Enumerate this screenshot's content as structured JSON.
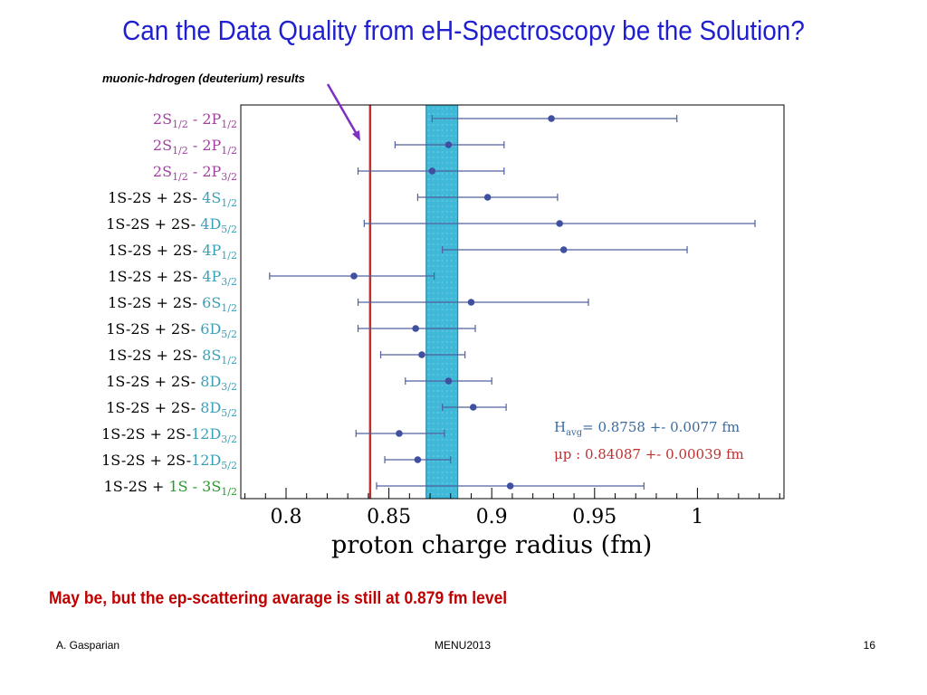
{
  "slide": {
    "title": "Can the Data Quality from eH-Spectroscopy be the Solution?",
    "annotation": "muonic-hdrogen  (deuterium) results",
    "conclusion": "May be, but the ep-scattering avarage is still at 0.879 fm level",
    "footer_left": "A. Gasparian",
    "footer_center": "MENU2013",
    "footer_right": "16"
  },
  "colors": {
    "title": "#1f1fd0",
    "conclusion": "#c00000",
    "label_purple": "#a040a0",
    "label_teal": "#3aa0b8",
    "label_green": "#2a9a2a",
    "point": "#4050a0",
    "avg_band": "#40b8d8",
    "muonic_line": "#c03030",
    "arrow": "#8030c0"
  },
  "chart_data": {
    "type": "scatter",
    "xlabel": "proton charge radius (fm)",
    "xlim": [
      0.78,
      1.045
    ],
    "xticks": [
      "0.8",
      "0.85",
      "0.9",
      "0.95",
      "1"
    ],
    "xtick_values": [
      0.8,
      0.85,
      0.9,
      0.95,
      1.0
    ],
    "points": [
      {
        "prefix": "",
        "main": "2S",
        "sub1": "1/2",
        "mid": " -  2P",
        "sub2": "1/2",
        "style": "purple",
        "value": 0.929,
        "low": 0.871,
        "high": 0.99
      },
      {
        "prefix": "",
        "main": "2S",
        "sub1": "1/2",
        "mid": " -  2P",
        "sub2": "1/2",
        "style": "purple",
        "value": 0.879,
        "low": 0.853,
        "high": 0.906
      },
      {
        "prefix": "",
        "main": "2S",
        "sub1": "1/2",
        "mid": " -  2P",
        "sub2": "3/2",
        "style": "purple",
        "value": 0.871,
        "low": 0.835,
        "high": 0.906
      },
      {
        "prefix": "1S-2S + 2S-  ",
        "main": "4S",
        "sub1": "1/2",
        "mid": "",
        "sub2": "",
        "style": "teal",
        "value": 0.898,
        "low": 0.864,
        "high": 0.932
      },
      {
        "prefix": "1S-2S + 2S-  ",
        "main": "4D",
        "sub1": "5/2",
        "mid": "",
        "sub2": "",
        "style": "teal",
        "value": 0.933,
        "low": 0.838,
        "high": 1.028
      },
      {
        "prefix": "1S-2S + 2S-  ",
        "main": "4P",
        "sub1": "1/2",
        "mid": "",
        "sub2": "",
        "style": "teal",
        "value": 0.935,
        "low": 0.876,
        "high": 0.995
      },
      {
        "prefix": "1S-2S + 2S-  ",
        "main": "4P",
        "sub1": "3/2",
        "mid": "",
        "sub2": "",
        "style": "teal",
        "value": 0.833,
        "low": 0.792,
        "high": 0.872
      },
      {
        "prefix": "1S-2S + 2S-  ",
        "main": "6S",
        "sub1": "1/2",
        "mid": "",
        "sub2": "",
        "style": "teal",
        "value": 0.89,
        "low": 0.835,
        "high": 0.947
      },
      {
        "prefix": "1S-2S + 2S-  ",
        "main": "6D",
        "sub1": "5/2",
        "mid": "",
        "sub2": "",
        "style": "teal",
        "value": 0.863,
        "low": 0.835,
        "high": 0.892
      },
      {
        "prefix": "1S-2S + 2S-  ",
        "main": "8S",
        "sub1": "1/2",
        "mid": "",
        "sub2": "",
        "style": "teal",
        "value": 0.866,
        "low": 0.846,
        "high": 0.887
      },
      {
        "prefix": "1S-2S + 2S-  ",
        "main": "8D",
        "sub1": "3/2",
        "mid": "",
        "sub2": "",
        "style": "teal",
        "value": 0.879,
        "low": 0.858,
        "high": 0.9
      },
      {
        "prefix": "1S-2S + 2S-  ",
        "main": "8D",
        "sub1": "5/2",
        "mid": "",
        "sub2": "",
        "style": "teal",
        "value": 0.891,
        "low": 0.876,
        "high": 0.907
      },
      {
        "prefix": "1S-2S + 2S-",
        "main": "12D",
        "sub1": "3/2",
        "mid": "",
        "sub2": "",
        "style": "teal",
        "value": 0.855,
        "low": 0.834,
        "high": 0.877
      },
      {
        "prefix": "1S-2S + 2S-",
        "main": "12D",
        "sub1": "5/2",
        "mid": "",
        "sub2": "",
        "style": "teal",
        "value": 0.864,
        "low": 0.848,
        "high": 0.88
      },
      {
        "prefix": "1S-2S +  ",
        "main": "1S - 3S",
        "sub1": "1/2",
        "mid": "",
        "sub2": "",
        "style": "green",
        "value": 0.909,
        "low": 0.844,
        "high": 0.974
      }
    ],
    "h_avg": {
      "value": 0.8758,
      "err": 0.0077,
      "label_main": "H",
      "label_sub": "avg",
      "label_rest": "= 0.8758 +- 0.0077 fm"
    },
    "muonic": {
      "value": 0.84087,
      "err": 0.00039,
      "label": "μp : 0.84087 +- 0.00039 fm"
    }
  }
}
